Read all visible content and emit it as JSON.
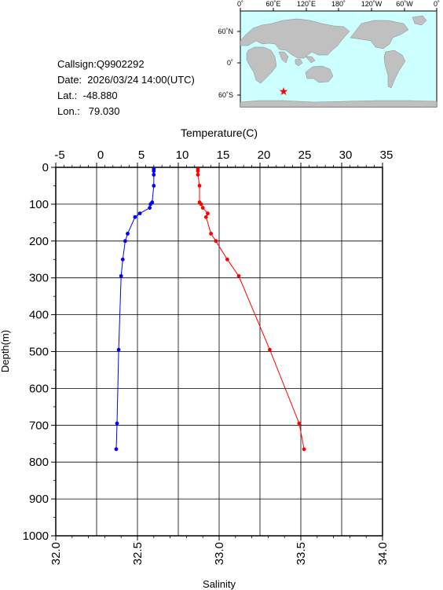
{
  "info": {
    "callsign": "Callsign:Q9902292",
    "date": "Date:  2026/03/24 14:00(UTC)",
    "lat": "Lat.:  -48.880",
    "lon": "Lon.:   79.030"
  },
  "map": {
    "lon_labels": [
      "0˚",
      "60˚E",
      "120˚E",
      "180˚",
      "120˚W",
      "60˚W",
      "0˚"
    ],
    "lat_labels": [
      "60˚N",
      "0˚",
      "60˚S"
    ],
    "marker": {
      "lat": -48.88,
      "lon": 79.03,
      "color": "#ff0000"
    },
    "ocean_color": "#ccffff",
    "land_color": "#c0c0c0"
  },
  "chart_data": {
    "type": "line",
    "top_axis_label": "Temperature(C)",
    "bottom_axis_label": "Salinity",
    "ylabel": "Depth(m)",
    "temperature_ticks": [
      "-5",
      "0",
      "5",
      "10",
      "15",
      "20",
      "25",
      "30",
      "35"
    ],
    "salinity_ticks": [
      "32.0",
      "32.5",
      "33.0",
      "33.5",
      "34.0"
    ],
    "depth_ticks": [
      "0",
      "100",
      "200",
      "300",
      "400",
      "500",
      "600",
      "700",
      "800",
      "900",
      "1000"
    ],
    "temperature_range": [
      -5,
      35
    ],
    "salinity_range": [
      32.0,
      34.0
    ],
    "depth_range": [
      0,
      1000
    ],
    "grid": true,
    "series": [
      {
        "name": "Temperature",
        "color": "#0000ff",
        "points": [
          [
            7.0,
            5
          ],
          [
            7.0,
            10
          ],
          [
            7.0,
            20
          ],
          [
            7.0,
            50
          ],
          [
            6.8,
            95
          ],
          [
            6.6,
            100
          ],
          [
            6.5,
            110
          ],
          [
            5.3,
            125
          ],
          [
            4.7,
            135
          ],
          [
            3.8,
            180
          ],
          [
            3.5,
            200
          ],
          [
            3.2,
            250
          ],
          [
            3.0,
            295
          ],
          [
            2.7,
            495
          ],
          [
            2.5,
            695
          ],
          [
            2.4,
            765
          ]
        ]
      },
      {
        "name": "Salinity",
        "color": "#ff0000",
        "points": [
          [
            32.87,
            5
          ],
          [
            32.87,
            10
          ],
          [
            32.87,
            20
          ],
          [
            32.88,
            50
          ],
          [
            32.88,
            95
          ],
          [
            32.89,
            100
          ],
          [
            32.9,
            110
          ],
          [
            32.93,
            125
          ],
          [
            32.92,
            135
          ],
          [
            32.95,
            180
          ],
          [
            32.98,
            200
          ],
          [
            33.05,
            250
          ],
          [
            33.12,
            295
          ],
          [
            33.31,
            495
          ],
          [
            33.49,
            695
          ],
          [
            33.52,
            765
          ]
        ]
      }
    ]
  }
}
